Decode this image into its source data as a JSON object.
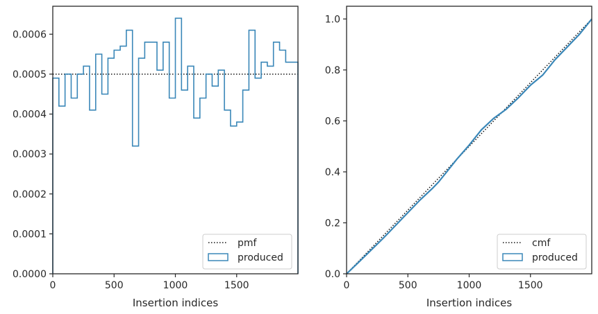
{
  "chart_data": [
    {
      "type": "histogram",
      "title": "",
      "xlabel": "Insertion indices",
      "ylabel": "",
      "xlim": [
        0,
        2000
      ],
      "ylim": [
        0,
        0.00067
      ],
      "grid": false,
      "legend_position": "bottom-right",
      "x_ticks": [
        "0",
        "500",
        "1000",
        "1500"
      ],
      "y_ticks": [
        "0.0000",
        "0.0001",
        "0.0002",
        "0.0003",
        "0.0004",
        "0.0005",
        "0.0006"
      ],
      "x_tick_values": [
        0,
        500,
        1000,
        1500
      ],
      "y_tick_values": [
        0,
        0.0001,
        0.0002,
        0.0003,
        0.0004,
        0.0005,
        0.0006
      ],
      "bin_width": 50,
      "series": [
        {
          "name": "produced",
          "style": "step",
          "color": "#3a87b8",
          "values": [
            0.00049,
            0.00042,
            0.0005,
            0.00044,
            0.0005,
            0.00052,
            0.00041,
            0.00055,
            0.00045,
            0.00054,
            0.00056,
            0.00057,
            0.00061,
            0.00032,
            0.00054,
            0.00058,
            0.00058,
            0.00051,
            0.00058,
            0.00044,
            0.00064,
            0.00046,
            0.00052,
            0.00039,
            0.00044,
            0.0005,
            0.00047,
            0.00051,
            0.00041,
            0.00037,
            0.00038,
            0.00046,
            0.00061,
            0.00049,
            0.00053,
            0.00052,
            0.00058,
            0.00056,
            0.00053,
            0.00053
          ]
        },
        {
          "name": "pmf",
          "style": "dotted",
          "color": "#111111",
          "value": 0.0005
        }
      ]
    },
    {
      "type": "line",
      "title": "",
      "xlabel": "Insertion indices",
      "ylabel": "",
      "xlim": [
        0,
        2000
      ],
      "ylim": [
        0,
        1.05
      ],
      "grid": false,
      "legend_position": "bottom-right",
      "x_ticks": [
        "0",
        "500",
        "1000",
        "1500"
      ],
      "y_ticks": [
        "0.0",
        "0.2",
        "0.4",
        "0.6",
        "0.8",
        "1.0"
      ],
      "x_tick_values": [
        0,
        500,
        1000,
        1500
      ],
      "y_tick_values": [
        0,
        0.2,
        0.4,
        0.6,
        0.8,
        1.0
      ],
      "series": [
        {
          "name": "produced",
          "style": "step",
          "color": "#3a87b8",
          "x": [
            0,
            100,
            200,
            300,
            350,
            400,
            500,
            600,
            700,
            750,
            800,
            900,
            1000,
            1100,
            1200,
            1300,
            1400,
            1500,
            1550,
            1600,
            1700,
            1800,
            1900,
            2000
          ],
          "y": [
            0,
            0.046,
            0.093,
            0.14,
            0.165,
            0.19,
            0.24,
            0.29,
            0.335,
            0.36,
            0.39,
            0.45,
            0.505,
            0.565,
            0.61,
            0.645,
            0.69,
            0.74,
            0.76,
            0.78,
            0.84,
            0.89,
            0.94,
            1.0
          ]
        },
        {
          "name": "cmf",
          "style": "dotted",
          "color": "#111111",
          "x": [
            0,
            2000
          ],
          "y": [
            0,
            1.0
          ]
        }
      ]
    }
  ]
}
